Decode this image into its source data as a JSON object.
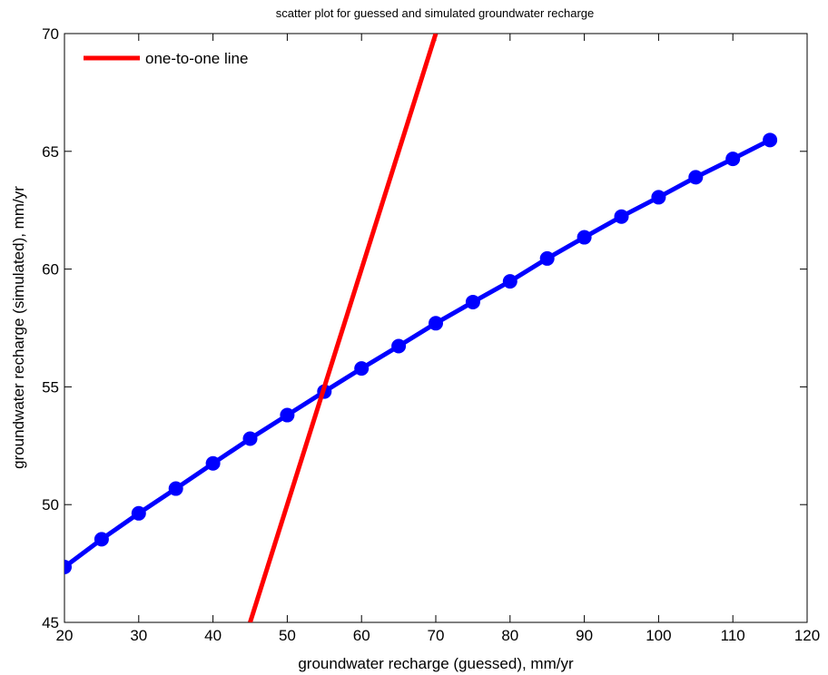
{
  "chart_data": {
    "type": "line",
    "title": "scatter plot for guessed and simulated groundwater recharge",
    "xlabel": "groundwater recharge (guessed),  mm/yr",
    "ylabel": "groundwater recharge (simulated), mm/yr",
    "xlim": [
      20,
      120
    ],
    "ylim": [
      45,
      70
    ],
    "xticks": [
      20,
      30,
      40,
      50,
      60,
      70,
      80,
      90,
      100,
      110,
      120
    ],
    "yticks": [
      45,
      50,
      55,
      60,
      65,
      70
    ],
    "grid": false,
    "legend_position": "top-left",
    "legend": [
      {
        "label": "one-to-one line",
        "color": "#ff0000"
      }
    ],
    "series": [
      {
        "color": "#0000ff",
        "marker": "circle",
        "x": [
          20,
          25,
          30,
          35,
          40,
          45,
          50,
          55,
          60,
          65,
          70,
          75,
          80,
          85,
          90,
          95,
          100,
          105,
          110,
          115
        ],
        "y": [
          47.35,
          48.53,
          49.63,
          50.68,
          51.75,
          52.8,
          53.8,
          54.8,
          55.78,
          56.73,
          57.7,
          58.6,
          59.48,
          60.45,
          61.35,
          62.23,
          63.05,
          63.9,
          64.68,
          65.48
        ]
      },
      {
        "name": "one-to-one line",
        "color": "#ff0000",
        "marker": "none",
        "x": [
          45,
          70
        ],
        "y": [
          45,
          70
        ]
      }
    ]
  }
}
